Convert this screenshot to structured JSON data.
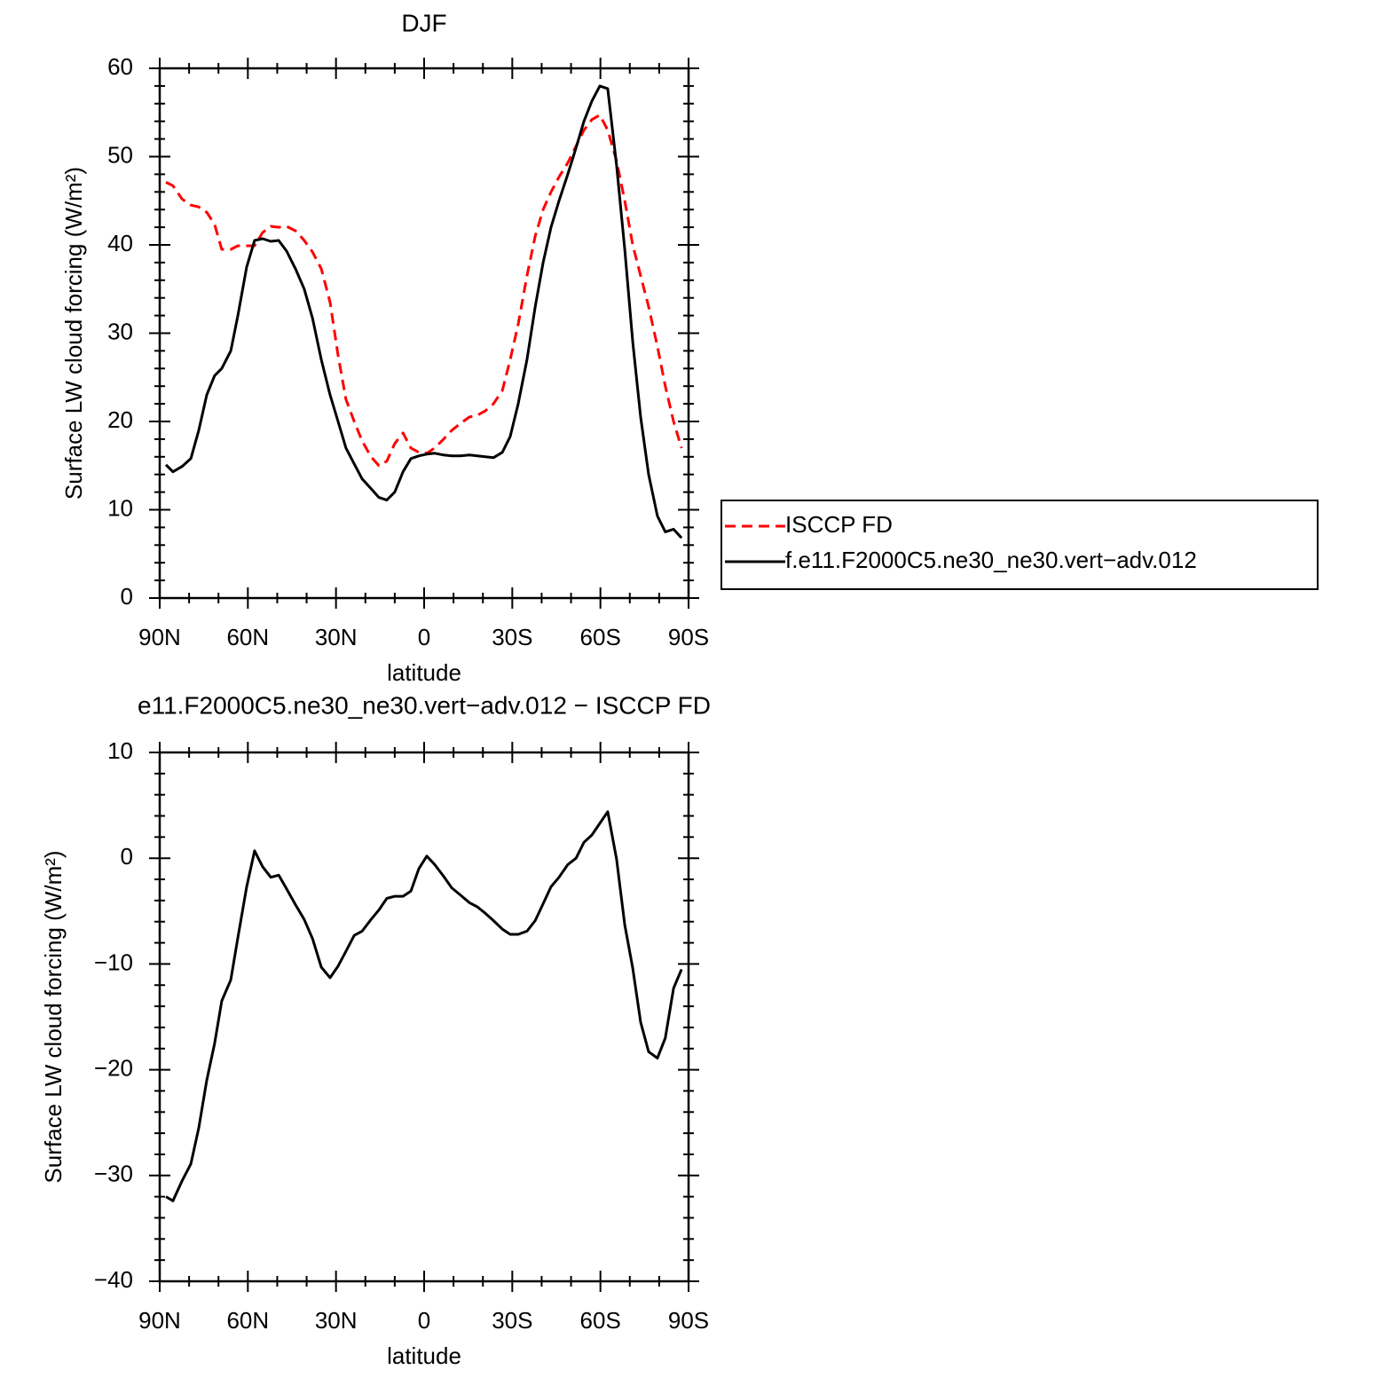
{
  "chart_data": [
    {
      "type": "line",
      "title": "DJF",
      "xlabel": "latitude",
      "ylabel": "Surface LW cloud forcing (W/m²)",
      "x": [
        87.9,
        85.5,
        82.4,
        79.4,
        76.7,
        74.0,
        71.3,
        68.9,
        65.8,
        63.4,
        60.4,
        57.7,
        55.0,
        52.2,
        49.5,
        46.8,
        43.8,
        40.8,
        38.0,
        35.0,
        32.0,
        29.3,
        26.6,
        23.8,
        21.1,
        18.1,
        15.4,
        12.7,
        10.0,
        7.2,
        4.5,
        1.8,
        -0.9,
        -3.6,
        -6.6,
        -9.4,
        -12.4,
        -15.4,
        -18.1,
        -20.8,
        -23.6,
        -26.6,
        -29.3,
        -32.0,
        -35.0,
        -37.8,
        -40.5,
        -43.2,
        -45.9,
        -48.9,
        -51.7,
        -54.4,
        -57.1,
        -59.8,
        -62.5,
        -65.5,
        -68.3,
        -71.0,
        -73.7,
        -76.4,
        -79.4,
        -82.1,
        -84.9,
        -87.6
      ],
      "series": [
        {
          "name": "ISCCP FD",
          "color": "#ff0000",
          "linestyle": "dashed",
          "values": [
            47.1,
            46.7,
            45.2,
            44.5,
            44.3,
            43.7,
            42.3,
            39.5,
            39.5,
            39.9,
            39.9,
            39.9,
            41.4,
            42.1,
            42.0,
            42.1,
            41.6,
            40.5,
            39.2,
            37.3,
            33.5,
            27.5,
            22.5,
            20.0,
            17.8,
            16.0,
            15.0,
            15.5,
            17.5,
            18.7,
            17.0,
            16.5,
            16.4,
            17.0,
            18.0,
            19.0,
            19.8,
            20.5,
            20.7,
            21.2,
            22.0,
            23.5,
            27.0,
            31.0,
            36.5,
            41.0,
            44.0,
            46.0,
            47.7,
            49.3,
            51.2,
            53.0,
            54.2,
            54.7,
            53.0,
            49.5,
            45.0,
            40.0,
            36.5,
            33.0,
            28.5,
            24.0,
            20.0,
            17.0
          ]
        },
        {
          "name": "f.e11.F2000C5.ne30_ne30.vert−adv.012",
          "color": "#000000",
          "linestyle": "solid",
          "values": [
            15.1,
            14.3,
            14.9,
            15.8,
            19.0,
            23.0,
            25.2,
            26.0,
            28.0,
            32.0,
            37.5,
            40.5,
            40.7,
            40.4,
            40.5,
            39.3,
            37.3,
            35.0,
            31.7,
            27.0,
            23.0,
            20.0,
            17.0,
            15.2,
            13.5,
            12.4,
            11.4,
            11.1,
            12.0,
            14.3,
            15.8,
            16.1,
            16.3,
            16.4,
            16.2,
            16.1,
            16.1,
            16.2,
            16.1,
            16.0,
            15.9,
            16.5,
            18.3,
            22.0,
            27.0,
            33.0,
            38.0,
            42.0,
            45.0,
            48.0,
            51.0,
            54.0,
            56.3,
            58.0,
            57.7,
            49.0,
            39.5,
            29.0,
            20.5,
            14.0,
            9.3,
            7.5,
            7.8,
            6.8
          ]
        }
      ],
      "xlim": [
        90,
        -90
      ],
      "xticks": [
        {
          "value": 90,
          "label": "90N"
        },
        {
          "value": 60,
          "label": "60N"
        },
        {
          "value": 30,
          "label": "30N"
        },
        0,
        {
          "value": -30,
          "label": "30S"
        },
        {
          "value": -60,
          "label": "60S"
        },
        {
          "value": -90,
          "label": "90S"
        }
      ],
      "ylim": [
        0,
        60
      ],
      "yticks": [
        0,
        10,
        20,
        30,
        40,
        50,
        60
      ],
      "legend": "right"
    },
    {
      "type": "line",
      "title": "e11.F2000C5.ne30_ne30.vert−adv.012 − ISCCP FD",
      "xlabel": "latitude",
      "ylabel": "Surface LW cloud forcing (W/m²)",
      "x": [
        87.9,
        85.5,
        82.4,
        79.4,
        76.7,
        74.0,
        71.3,
        68.9,
        65.8,
        63.4,
        60.4,
        57.7,
        55.0,
        52.2,
        49.5,
        46.8,
        43.8,
        40.8,
        38.0,
        35.0,
        32.0,
        29.3,
        26.6,
        23.8,
        21.1,
        18.1,
        15.4,
        12.7,
        10.0,
        7.2,
        4.5,
        1.8,
        -0.9,
        -3.6,
        -6.6,
        -9.4,
        -12.4,
        -15.4,
        -18.1,
        -20.8,
        -23.6,
        -26.6,
        -29.3,
        -32.0,
        -35.0,
        -37.8,
        -40.5,
        -43.2,
        -45.9,
        -48.9,
        -51.7,
        -54.4,
        -57.1,
        -59.8,
        -62.5,
        -65.5,
        -68.3,
        -71.0,
        -73.7,
        -76.4,
        -79.4,
        -82.1,
        -84.9,
        -87.6
      ],
      "series": [
        {
          "color": "#000000",
          "linestyle": "solid",
          "values": [
            -32.0,
            -32.4,
            -30.5,
            -28.9,
            -25.5,
            -21.0,
            -17.5,
            -13.5,
            -11.5,
            -7.5,
            -2.7,
            0.7,
            -0.8,
            -1.8,
            -1.6,
            -2.9,
            -4.4,
            -5.8,
            -7.6,
            -10.3,
            -11.3,
            -10.2,
            -8.8,
            -7.3,
            -6.9,
            -5.8,
            -4.9,
            -3.8,
            -3.6,
            -3.6,
            -3.1,
            -1.0,
            0.2,
            -0.6,
            -1.7,
            -2.8,
            -3.5,
            -4.2,
            -4.6,
            -5.2,
            -5.9,
            -6.7,
            -7.2,
            -7.2,
            -6.9,
            -5.9,
            -4.3,
            -2.7,
            -1.8,
            -0.6,
            0.0,
            1.5,
            2.2,
            3.3,
            4.4,
            -0.1,
            -6.3,
            -10.4,
            -15.5,
            -18.3,
            -18.9,
            -17.0,
            -12.3,
            -10.5
          ]
        }
      ],
      "xlim": [
        90,
        -90
      ],
      "xticks": [
        {
          "value": 90,
          "label": "90N"
        },
        {
          "value": 60,
          "label": "60N"
        },
        {
          "value": 30,
          "label": "30N"
        },
        0,
        {
          "value": -30,
          "label": "30S"
        },
        {
          "value": -60,
          "label": "60S"
        },
        {
          "value": -90,
          "label": "90S"
        }
      ],
      "ylim": [
        -40,
        10
      ],
      "yticks": [
        {
          "value": -40,
          "label": "−40"
        },
        {
          "value": -30,
          "label": "−30"
        },
        {
          "value": -20,
          "label": "−20"
        },
        {
          "value": -10,
          "label": "−10"
        },
        0,
        10
      ]
    }
  ]
}
